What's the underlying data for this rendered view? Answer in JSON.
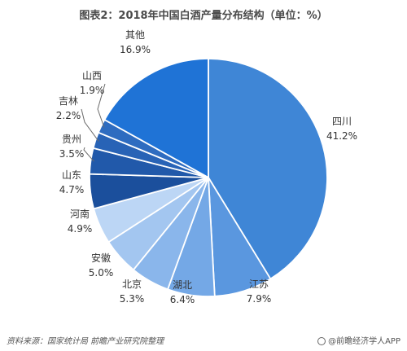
{
  "chart_data": {
    "type": "pie",
    "title": "图表2：2018年中国白酒产量分布结构（单位：%）",
    "slices": [
      {
        "name": "四川",
        "value": 41.2,
        "value_label": "41.2%",
        "color": "#3f86d6"
      },
      {
        "name": "江苏",
        "value": 7.9,
        "value_label": "7.9%",
        "color": "#5a97df"
      },
      {
        "name": "湖北",
        "value": 6.4,
        "value_label": "6.4%",
        "color": "#74a8e6"
      },
      {
        "name": "北京",
        "value": 5.3,
        "value_label": "5.3%",
        "color": "#8ab6eb"
      },
      {
        "name": "安徽",
        "value": 5.0,
        "value_label": "5.0%",
        "color": "#a3c6f0"
      },
      {
        "name": "河南",
        "value": 4.9,
        "value_label": "4.9%",
        "color": "#bcd6f5"
      },
      {
        "name": "山东",
        "value": 4.7,
        "value_label": "4.7%",
        "color": "#1b4f9c"
      },
      {
        "name": "贵州",
        "value": 3.5,
        "value_label": "3.5%",
        "color": "#2159aa"
      },
      {
        "name": "吉林",
        "value": 2.2,
        "value_label": "2.2%",
        "color": "#2863b6"
      },
      {
        "name": "山西",
        "value": 1.9,
        "value_label": "1.9%",
        "color": "#2e6cc0"
      },
      {
        "name": "其他",
        "value": 16.9,
        "value_label": "16.9%",
        "color": "#1f73d6"
      }
    ]
  },
  "footer": {
    "source": "资料来源：国家统计局 前瞻产业研究院整理",
    "brand": "@前瞻经济学人APP"
  }
}
